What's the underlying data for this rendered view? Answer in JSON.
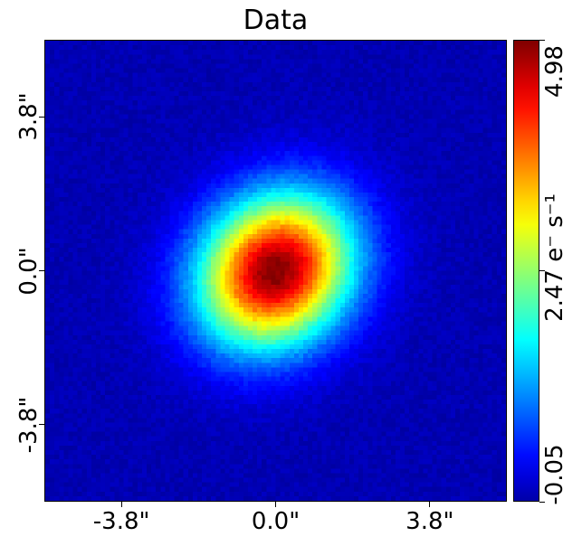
{
  "chart_data": {
    "type": "heatmap",
    "title": "Data",
    "description_units": "e⁻ s⁻¹",
    "xticks": [
      "-3.8\"",
      "0.0\"",
      "3.8\""
    ],
    "xtick_values": [
      -3.8,
      0.0,
      3.8
    ],
    "yticks": [
      "-3.8\"",
      "0.0\"",
      "3.8\""
    ],
    "ytick_values": [
      -3.8,
      0.0,
      3.8
    ],
    "xlim": [
      -5.7,
      5.7
    ],
    "ylim": [
      -5.7,
      5.7
    ],
    "colorbar": {
      "colormap": "jet",
      "vmin": -0.05,
      "vmax": 4.98,
      "min_label": "-0.05",
      "mid_label": "2.47 e⁻ s⁻¹",
      "max_label": "4.98"
    },
    "source": {
      "shape": "elliptical gaussian",
      "center": [
        0.0,
        0.0
      ],
      "peak": 4.98,
      "sigma_major": 1.4,
      "sigma_minor": 1.2,
      "position_angle_deg": 45
    }
  }
}
